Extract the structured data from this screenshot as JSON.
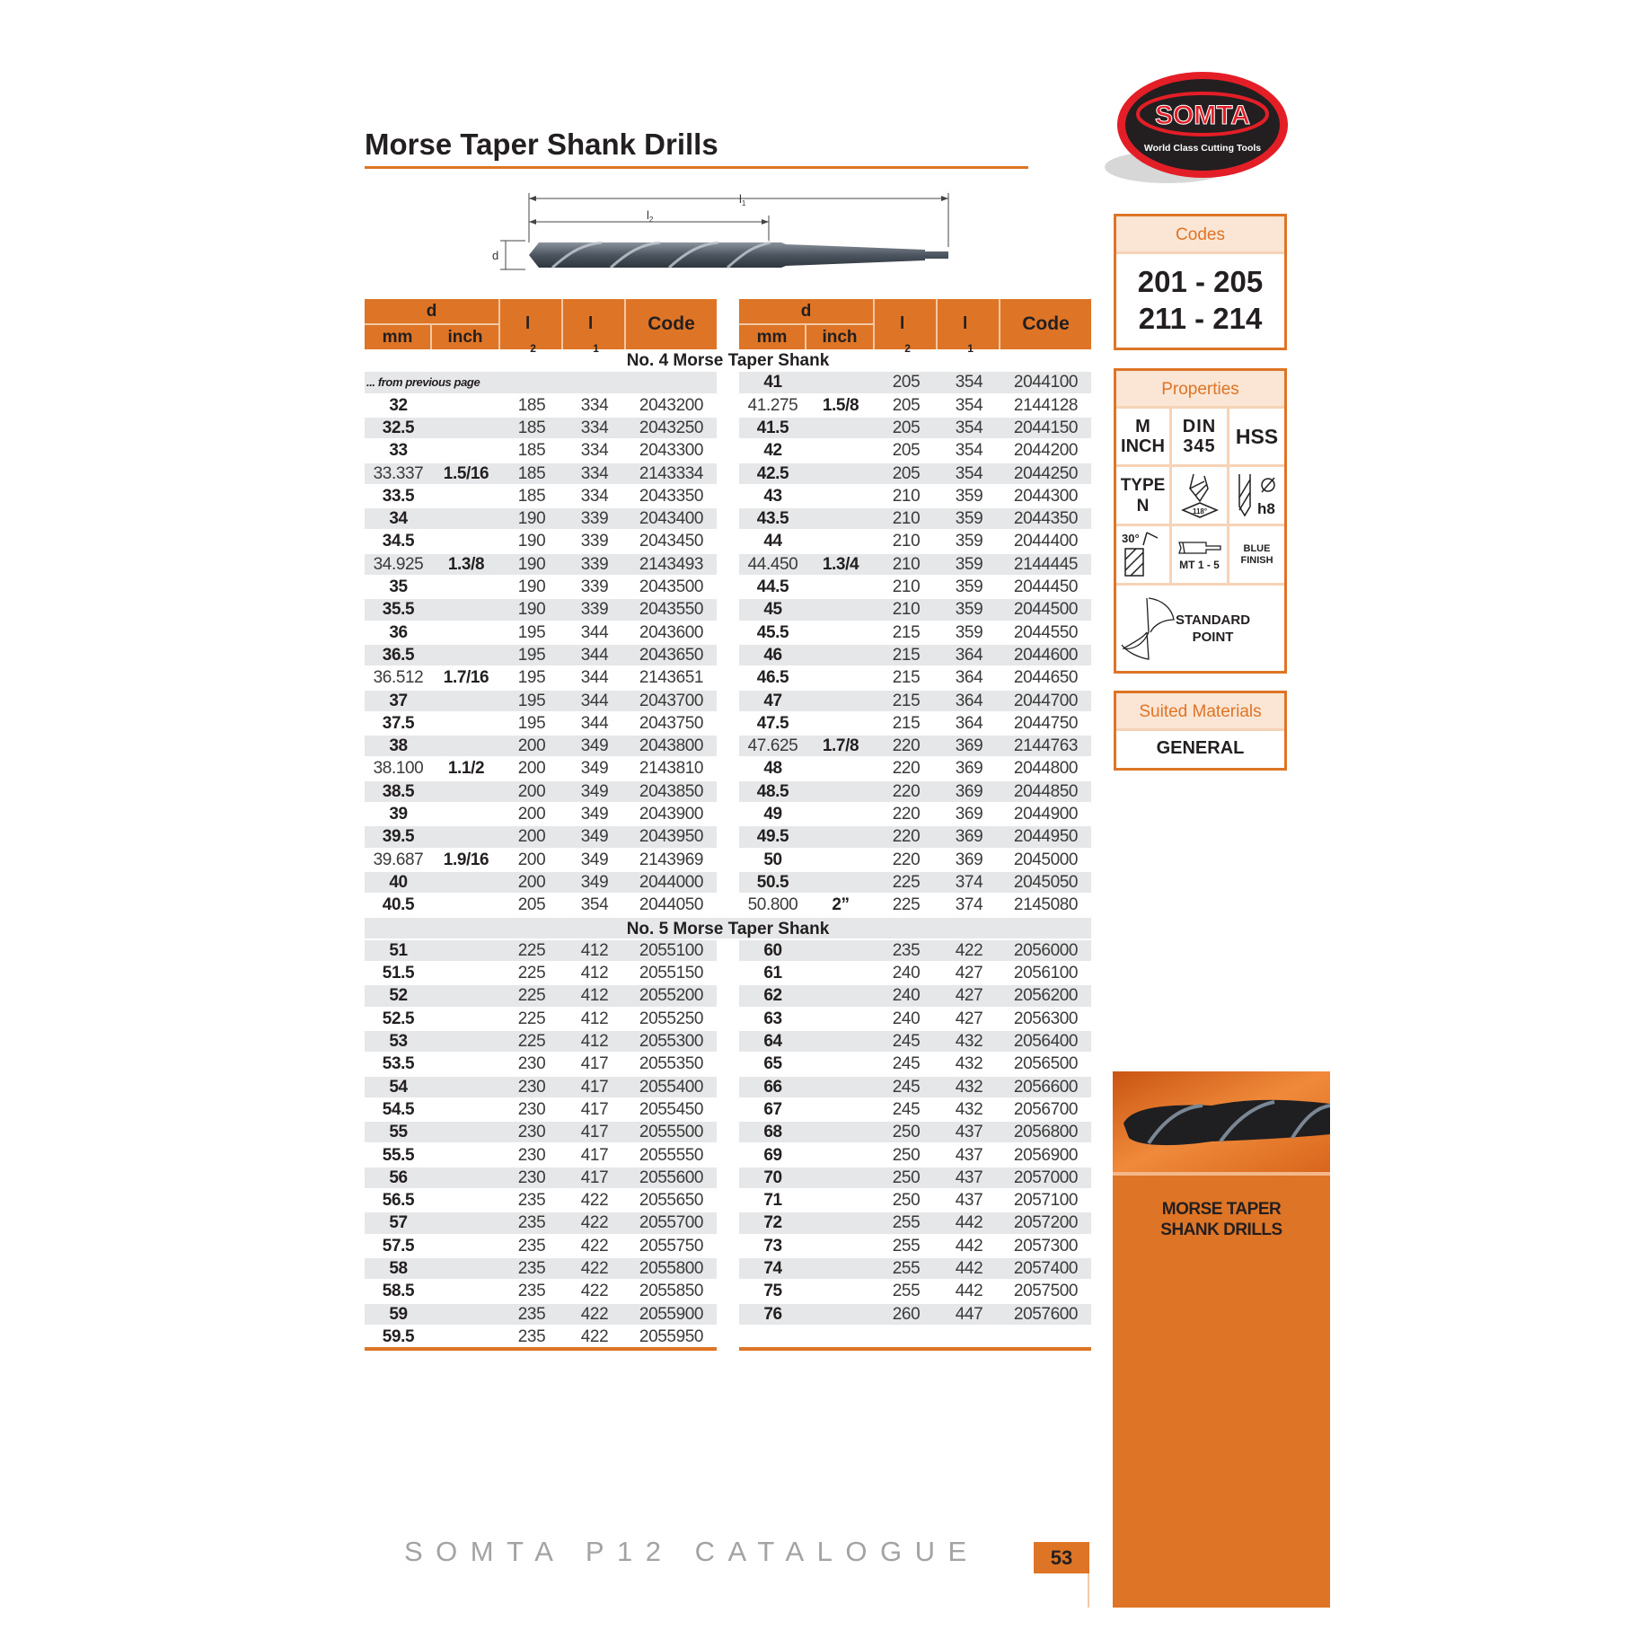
{
  "title": "Morse Taper Shank Drills",
  "logo": {
    "brand": "SOMTA",
    "tagline": "World Class Cutting Tools"
  },
  "diagram": {
    "l1_base": "l",
    "l1_sub": "1",
    "l2_base": "l",
    "l2_sub": "2",
    "d": "d"
  },
  "table": {
    "headers": {
      "d": "d",
      "mm": "mm",
      "inch": "inch",
      "l2_base": "l",
      "l2_sub": "2",
      "l1_base": "l",
      "l1_sub": "1",
      "code": "Code"
    },
    "sections": [
      {
        "title": "No. 4 Morse Taper Shank",
        "left": [
          {
            "note": "... from previous page"
          },
          [
            "32",
            "",
            "185",
            "334",
            "2043200"
          ],
          [
            "32.5",
            "",
            "185",
            "334",
            "2043250"
          ],
          [
            "33",
            "",
            "185",
            "334",
            "2043300"
          ],
          [
            "33.337",
            "1.5/16",
            "185",
            "334",
            "2143334"
          ],
          [
            "33.5",
            "",
            "185",
            "334",
            "2043350"
          ],
          [
            "34",
            "",
            "190",
            "339",
            "2043400"
          ],
          [
            "34.5",
            "",
            "190",
            "339",
            "2043450"
          ],
          [
            "34.925",
            "1.3/8",
            "190",
            "339",
            "2143493"
          ],
          [
            "35",
            "",
            "190",
            "339",
            "2043500"
          ],
          [
            "35.5",
            "",
            "190",
            "339",
            "2043550"
          ],
          [
            "36",
            "",
            "195",
            "344",
            "2043600"
          ],
          [
            "36.5",
            "",
            "195",
            "344",
            "2043650"
          ],
          [
            "36.512",
            "1.7/16",
            "195",
            "344",
            "2143651"
          ],
          [
            "37",
            "",
            "195",
            "344",
            "2043700"
          ],
          [
            "37.5",
            "",
            "195",
            "344",
            "2043750"
          ],
          [
            "38",
            "",
            "200",
            "349",
            "2043800"
          ],
          [
            "38.100",
            "1.1/2",
            "200",
            "349",
            "2143810"
          ],
          [
            "38.5",
            "",
            "200",
            "349",
            "2043850"
          ],
          [
            "39",
            "",
            "200",
            "349",
            "2043900"
          ],
          [
            "39.5",
            "",
            "200",
            "349",
            "2043950"
          ],
          [
            "39.687",
            "1.9/16",
            "200",
            "349",
            "2143969"
          ],
          [
            "40",
            "",
            "200",
            "349",
            "2044000"
          ],
          [
            "40.5",
            "",
            "205",
            "354",
            "2044050"
          ]
        ],
        "right": [
          [
            "41",
            "",
            "205",
            "354",
            "2044100"
          ],
          [
            "41.275",
            "1.5/8",
            "205",
            "354",
            "2144128"
          ],
          [
            "41.5",
            "",
            "205",
            "354",
            "2044150"
          ],
          [
            "42",
            "",
            "205",
            "354",
            "2044200"
          ],
          [
            "42.5",
            "",
            "205",
            "354",
            "2044250"
          ],
          [
            "43",
            "",
            "210",
            "359",
            "2044300"
          ],
          [
            "43.5",
            "",
            "210",
            "359",
            "2044350"
          ],
          [
            "44",
            "",
            "210",
            "359",
            "2044400"
          ],
          [
            "44.450",
            "1.3/4",
            "210",
            "359",
            "2144445"
          ],
          [
            "44.5",
            "",
            "210",
            "359",
            "2044450"
          ],
          [
            "45",
            "",
            "210",
            "359",
            "2044500"
          ],
          [
            "45.5",
            "",
            "215",
            "359",
            "2044550"
          ],
          [
            "46",
            "",
            "215",
            "364",
            "2044600"
          ],
          [
            "46.5",
            "",
            "215",
            "364",
            "2044650"
          ],
          [
            "47",
            "",
            "215",
            "364",
            "2044700"
          ],
          [
            "47.5",
            "",
            "215",
            "364",
            "2044750"
          ],
          [
            "47.625",
            "1.7/8",
            "220",
            "369",
            "2144763"
          ],
          [
            "48",
            "",
            "220",
            "369",
            "2044800"
          ],
          [
            "48.5",
            "",
            "220",
            "369",
            "2044850"
          ],
          [
            "49",
            "",
            "220",
            "369",
            "2044900"
          ],
          [
            "49.5",
            "",
            "220",
            "369",
            "2044950"
          ],
          [
            "50",
            "",
            "220",
            "369",
            "2045000"
          ],
          [
            "50.5",
            "",
            "225",
            "374",
            "2045050"
          ],
          [
            "50.800",
            "2”",
            "225",
            "374",
            "2145080"
          ]
        ]
      },
      {
        "title": "No. 5 Morse Taper Shank",
        "left": [
          [
            "51",
            "",
            "225",
            "412",
            "2055100"
          ],
          [
            "51.5",
            "",
            "225",
            "412",
            "2055150"
          ],
          [
            "52",
            "",
            "225",
            "412",
            "2055200"
          ],
          [
            "52.5",
            "",
            "225",
            "412",
            "2055250"
          ],
          [
            "53",
            "",
            "225",
            "412",
            "2055300"
          ],
          [
            "53.5",
            "",
            "230",
            "417",
            "2055350"
          ],
          [
            "54",
            "",
            "230",
            "417",
            "2055400"
          ],
          [
            "54.5",
            "",
            "230",
            "417",
            "2055450"
          ],
          [
            "55",
            "",
            "230",
            "417",
            "2055500"
          ],
          [
            "55.5",
            "",
            "230",
            "417",
            "2055550"
          ],
          [
            "56",
            "",
            "230",
            "417",
            "2055600"
          ],
          [
            "56.5",
            "",
            "235",
            "422",
            "2055650"
          ],
          [
            "57",
            "",
            "235",
            "422",
            "2055700"
          ],
          [
            "57.5",
            "",
            "235",
            "422",
            "2055750"
          ],
          [
            "58",
            "",
            "235",
            "422",
            "2055800"
          ],
          [
            "58.5",
            "",
            "235",
            "422",
            "2055850"
          ],
          [
            "59",
            "",
            "235",
            "422",
            "2055900"
          ],
          [
            "59.5",
            "",
            "235",
            "422",
            "2055950"
          ]
        ],
        "right": [
          [
            "60",
            "",
            "235",
            "422",
            "2056000"
          ],
          [
            "61",
            "",
            "240",
            "427",
            "2056100"
          ],
          [
            "62",
            "",
            "240",
            "427",
            "2056200"
          ],
          [
            "63",
            "",
            "240",
            "427",
            "2056300"
          ],
          [
            "64",
            "",
            "245",
            "432",
            "2056400"
          ],
          [
            "65",
            "",
            "245",
            "432",
            "2056500"
          ],
          [
            "66",
            "",
            "245",
            "432",
            "2056600"
          ],
          [
            "67",
            "",
            "245",
            "432",
            "2056700"
          ],
          [
            "68",
            "",
            "250",
            "437",
            "2056800"
          ],
          [
            "69",
            "",
            "250",
            "437",
            "2056900"
          ],
          [
            "70",
            "",
            "250",
            "437",
            "2057000"
          ],
          [
            "71",
            "",
            "250",
            "437",
            "2057100"
          ],
          [
            "72",
            "",
            "255",
            "442",
            "2057200"
          ],
          [
            "73",
            "",
            "255",
            "442",
            "2057300"
          ],
          [
            "74",
            "",
            "255",
            "442",
            "2057400"
          ],
          [
            "75",
            "",
            "255",
            "442",
            "2057500"
          ],
          [
            "76",
            "",
            "260",
            "447",
            "2057600"
          ],
          []
        ]
      }
    ]
  },
  "codes_box": {
    "label": "Codes",
    "line1": "201 - 205",
    "line2": "211 - 214"
  },
  "properties_box": {
    "label": "Properties",
    "m_inch": [
      "M",
      "INCH"
    ],
    "din": [
      "DIN",
      "345"
    ],
    "material": "HSS",
    "type": [
      "TYPE",
      "N"
    ],
    "point_angle": "118°",
    "tolerance": "h8",
    "helix_angle": "30°",
    "shank": "MT 1 - 5",
    "finish": [
      "BLUE",
      "FINISH"
    ],
    "point": [
      "STANDARD",
      "POINT"
    ]
  },
  "suited_box": {
    "label": "Suited Materials",
    "value": "GENERAL"
  },
  "sidebar": {
    "line1": "MORSE TAPER",
    "line2": "SHANK DRILLS"
  },
  "footer": {
    "catalogue": "SOMTA P12 CATALOGUE",
    "page": "53"
  },
  "colors": {
    "accent": "#de7425",
    "stripe": "#e6e7e8",
    "logo_red": "#e31e26",
    "logo_black": "#231f20"
  }
}
